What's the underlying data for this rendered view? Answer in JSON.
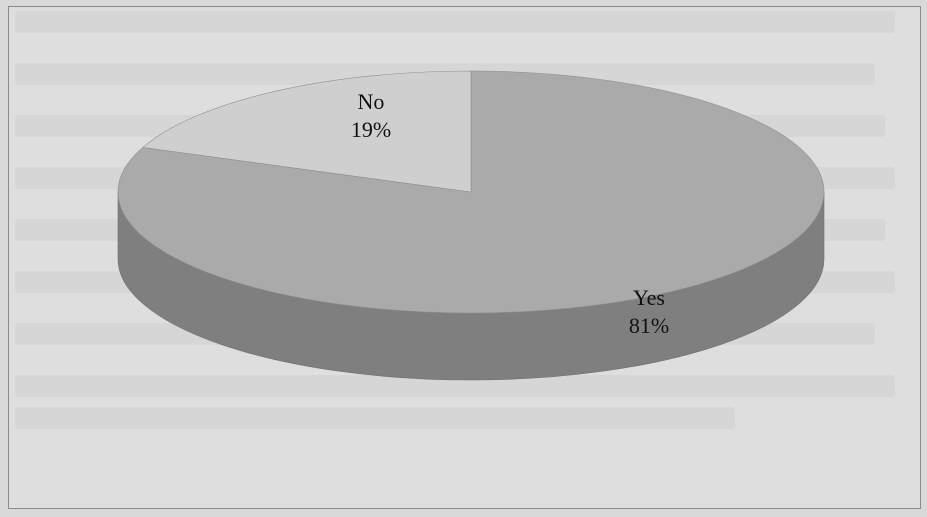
{
  "chart_data": {
    "type": "pie",
    "style": "3d",
    "title": "",
    "labels": [
      "Yes",
      "No"
    ],
    "values": [
      81,
      19
    ],
    "value_labels": [
      "81%",
      "19%"
    ],
    "colors": [
      "#aaaaaa",
      "#cfcfcf"
    ],
    "side_colors": [
      "#7f7f7f",
      "#9e9e9e"
    ],
    "legend": "none"
  }
}
